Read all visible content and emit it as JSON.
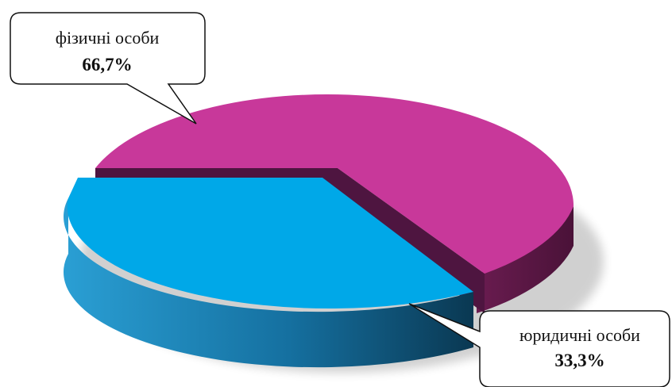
{
  "chart_data": {
    "type": "pie",
    "categories": [
      "фізичні особи",
      "юридичні особи"
    ],
    "values": [
      66.7,
      33.3
    ],
    "value_labels": [
      "66,7%",
      "33,3%"
    ],
    "colors": {
      "фізичні особи": "#c8389a",
      "юридичні особи": "#00a8e8"
    },
    "title": "",
    "style": "3d-exploded",
    "legend": "none"
  }
}
